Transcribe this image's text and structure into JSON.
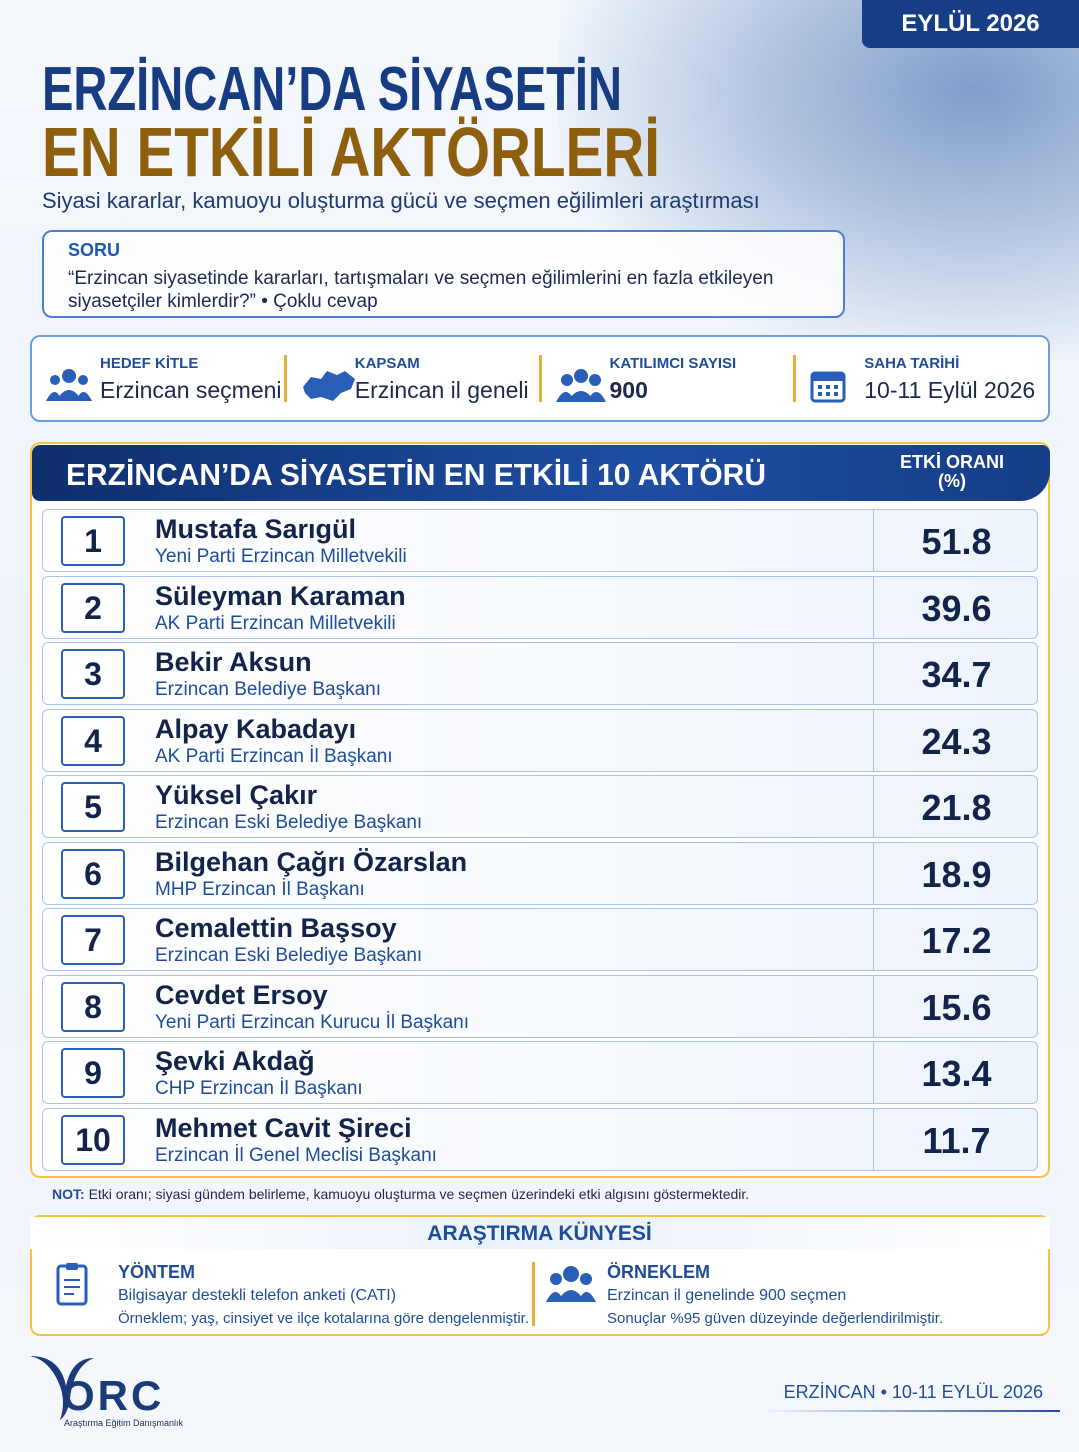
{
  "header": {
    "badge": "EYLÜL 2026",
    "title_line1": "ERZİNCAN’DA SİYASETİN",
    "title_line2": "EN ETKİLİ AKTÖRLERİ",
    "subtitle": "Siyasi kararlar, kamuoyu oluşturma gücü ve seçmen eğilimleri araştırması"
  },
  "question": {
    "label": "SORU",
    "text": "“Erzincan siyasetinde kararları, tartışmaları ve seçmen eğilimlerini en fazla etkileyen siyasetçiler kimlerdir?” • Çoklu cevap"
  },
  "info": [
    {
      "label": "HEDEF KİTLE",
      "value": "Erzincan seçmeni"
    },
    {
      "label": "KAPSAM",
      "value": "Erzincan il geneli"
    },
    {
      "label": "KATILIMCI SAYISI",
      "value": "900"
    },
    {
      "label": "SAHA TARİHİ",
      "value": "10-11 Eylül 2026"
    }
  ],
  "table": {
    "title": "ERZİNCAN’DA SİYASETİN EN ETKİLİ 10 AKTÖRÜ",
    "column_header": "ETKİ ORANI",
    "column_unit": "(%)",
    "rows": [
      {
        "rank": "1",
        "name": "Mustafa Sarıgül",
        "role": "Yeni Parti Erzincan Milletvekili",
        "value": "51.8"
      },
      {
        "rank": "2",
        "name": "Süleyman Karaman",
        "role": "AK Parti Erzincan Milletvekili",
        "value": "39.6"
      },
      {
        "rank": "3",
        "name": "Bekir Aksun",
        "role": "Erzincan Belediye Başkanı",
        "value": "34.7"
      },
      {
        "rank": "4",
        "name": "Alpay Kabadayı",
        "role": "AK Parti Erzincan İl Başkanı",
        "value": "24.3"
      },
      {
        "rank": "5",
        "name": "Yüksel Çakır",
        "role": "Erzincan Eski Belediye Başkanı",
        "value": "21.8"
      },
      {
        "rank": "6",
        "name": "Bilgehan Çağrı Özarslan",
        "role": "MHP Erzincan İl Başkanı",
        "value": "18.9"
      },
      {
        "rank": "7",
        "name": "Cemalettin Başsoy",
        "role": "Erzincan Eski Belediye Başkanı",
        "value": "17.2"
      },
      {
        "rank": "8",
        "name": "Cevdet Ersoy",
        "role": "Yeni Parti Erzincan Kurucu İl Başkanı",
        "value": "15.6"
      },
      {
        "rank": "9",
        "name": "Şevki Akdağ",
        "role": "CHP Erzincan İl Başkanı",
        "value": "13.4"
      },
      {
        "rank": "10",
        "name": "Mehmet Cavit Şireci",
        "role": "Erzincan İl Genel Meclisi Başkanı",
        "value": "11.7"
      }
    ]
  },
  "note": {
    "label": "NOT:",
    "text": "Etki oranı; siyasi gündem belirleme, kamuoyu oluşturma ve seçmen üzerindeki etki algısını göstermektedir."
  },
  "kunye": {
    "title": "ARAŞTIRMA KÜNYESİ",
    "method": {
      "title": "YÖNTEM",
      "line1": "Bilgisayar destekli telefon anketi (CATI)",
      "line2": "Örneklem; yaş, cinsiyet ve ilçe kotalarına göre dengelenmiştir."
    },
    "sample": {
      "title": "ÖRNEKLEM",
      "line1": "Erzincan il genelinde 900 seçmen",
      "line2": "Sonuçlar %95 güven düzeyinde değerlendirilmiştir."
    }
  },
  "footer": {
    "logo": "ORC",
    "logo_tagline": "Araştırma Eğitim Danışmanlık",
    "place_date": "ERZİNCAN • 10-11 EYLÜL 2026"
  }
}
